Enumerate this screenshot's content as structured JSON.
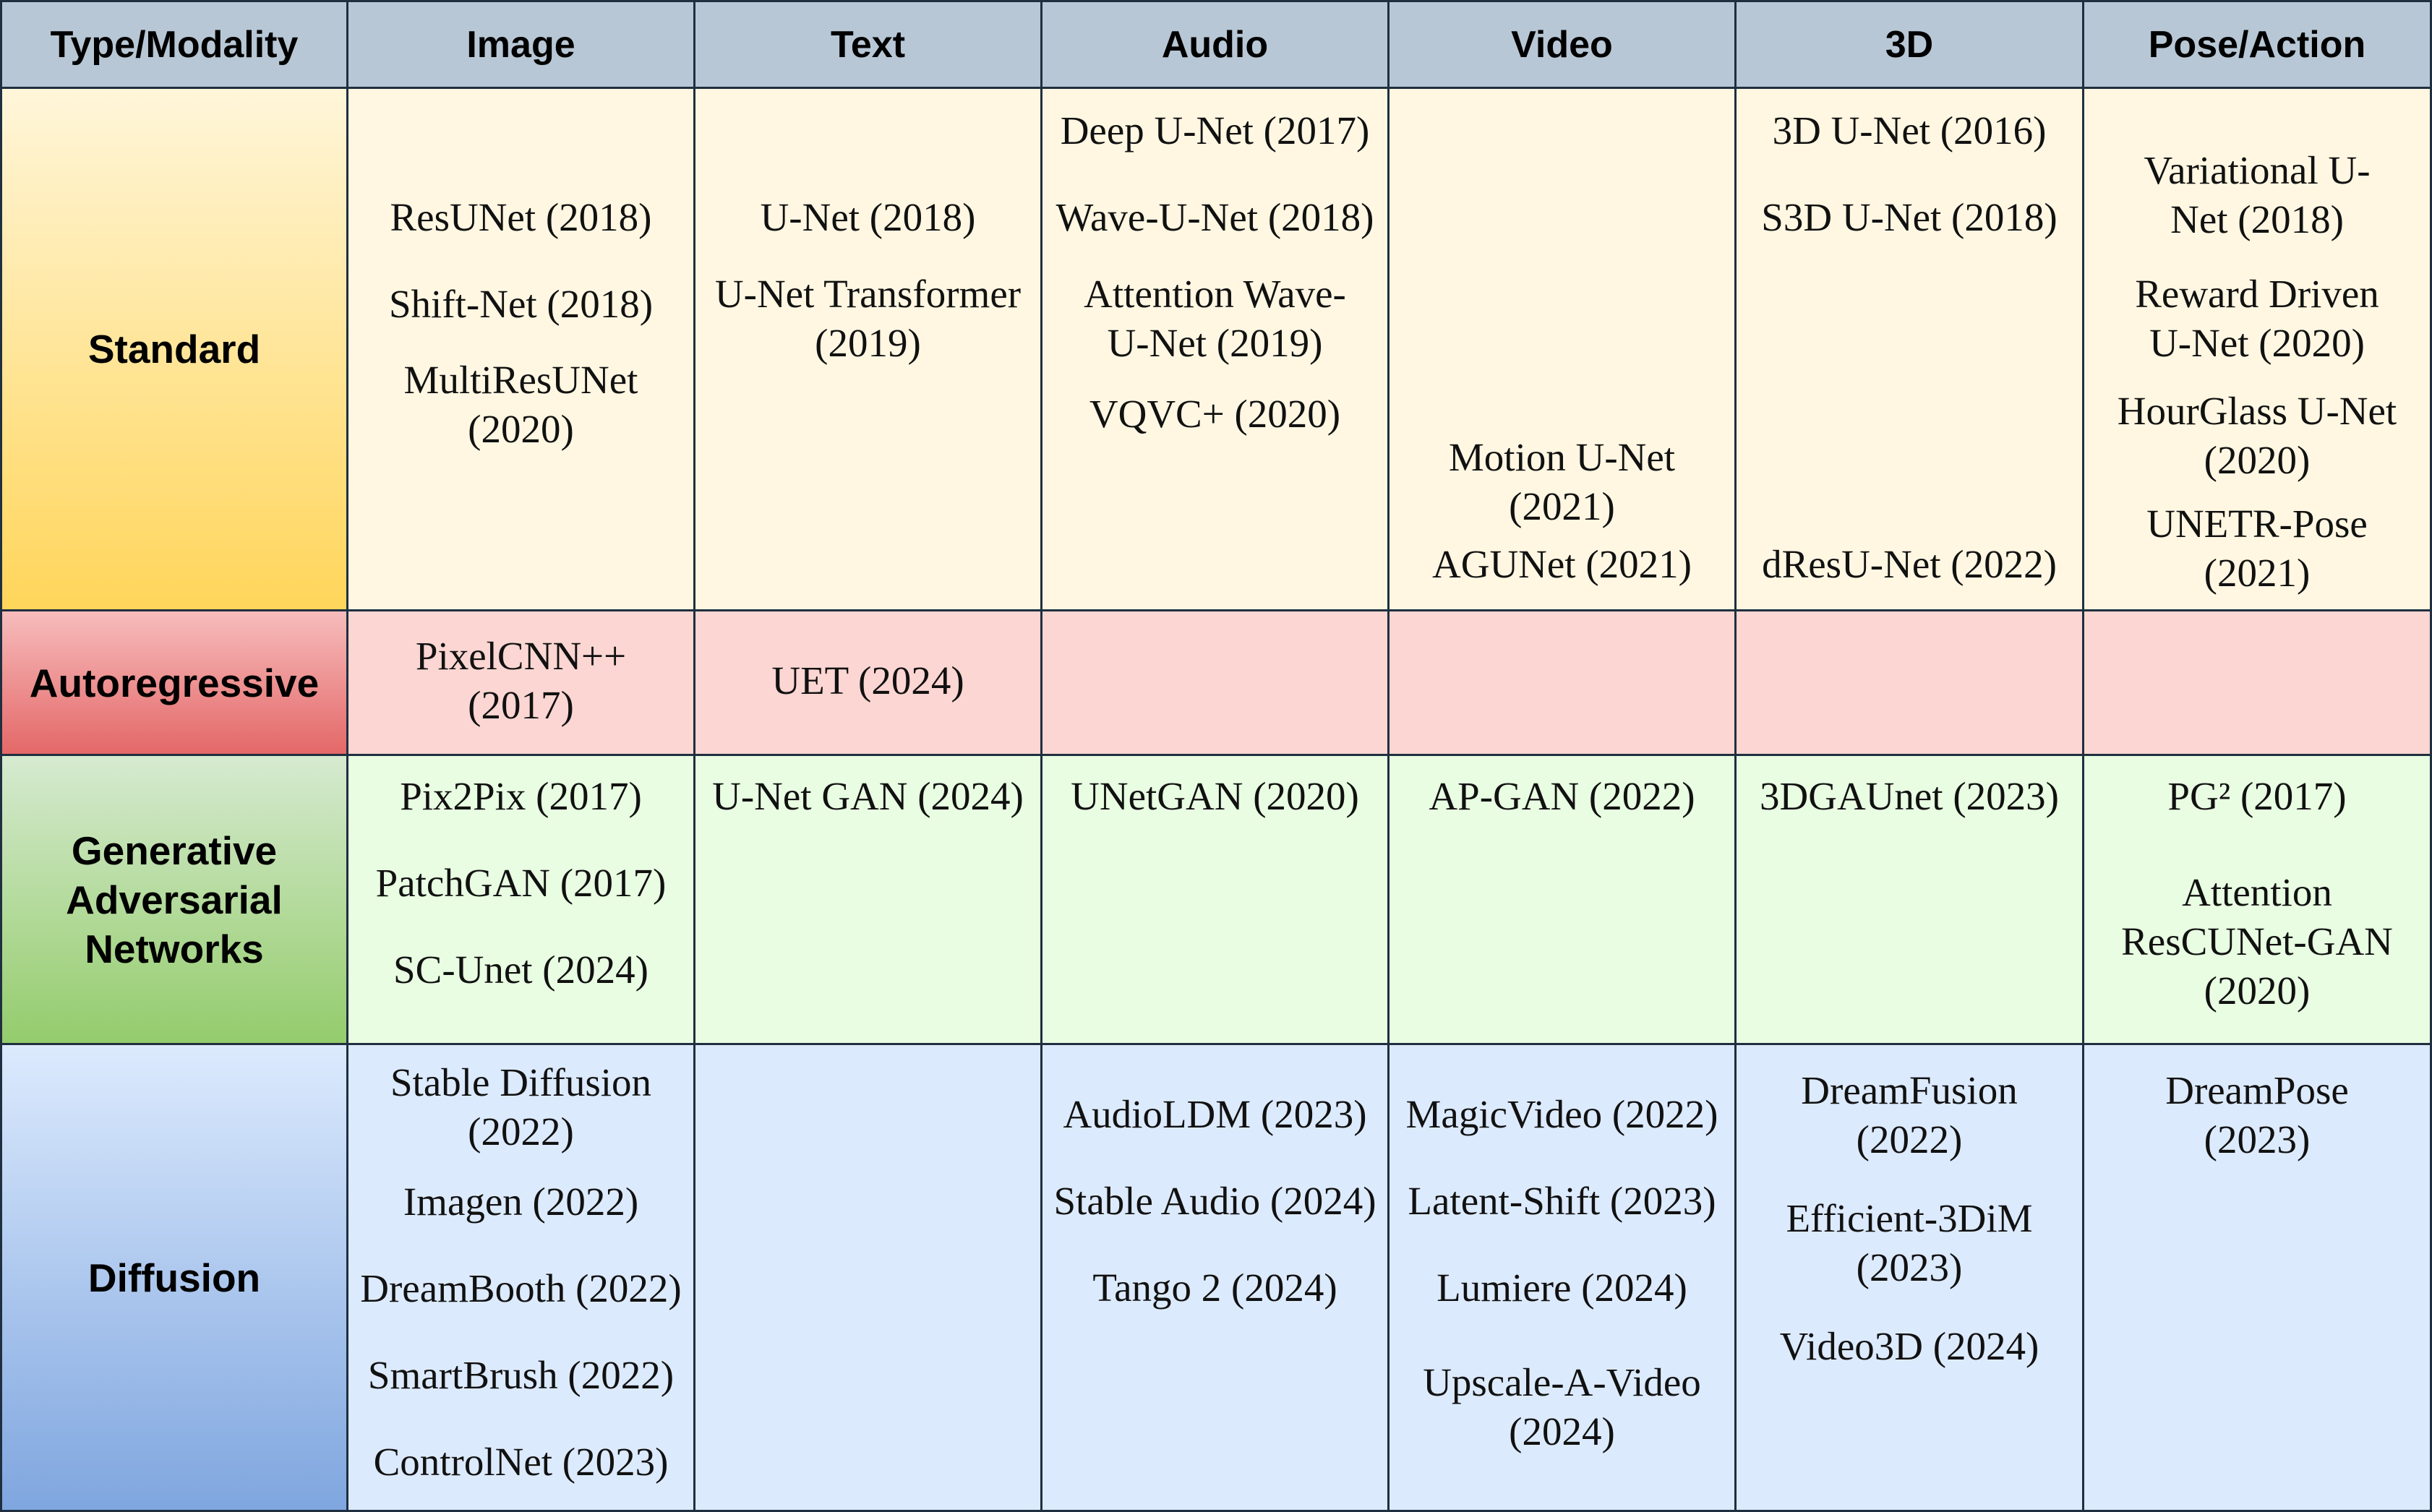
{
  "header": {
    "type_modality": "Type/Modality",
    "image": "Image",
    "text": "Text",
    "audio": "Audio",
    "video": "Video",
    "three_d": "3D",
    "pose_action": "Pose/Action"
  },
  "rows": {
    "standard": {
      "label": "Standard",
      "image": [
        "ResUNet (2018)",
        "Shift-Net (2018)",
        "MultiResUNet\n(2020)"
      ],
      "text": [
        "U-Net (2018)",
        "U-Net Transformer\n(2019)"
      ],
      "audio": [
        "Deep U-Net (2017)",
        "Wave-U-Net (2018)",
        "Attention Wave-\nU-Net (2019)",
        "VQVC+ (2020)"
      ],
      "video": [
        "Motion U-Net\n(2021)",
        "AGUNet (2021)"
      ],
      "three_d": [
        "3D U-Net (2016)",
        "S3D U-Net (2018)",
        "dResU-Net (2022)"
      ],
      "pose_action": [
        "Variational U-\nNet (2018)",
        "Reward Driven\nU-Net (2020)",
        "HourGlass U-Net\n(2020)",
        "UNETR-Pose\n(2021)"
      ]
    },
    "autoregressive": {
      "label": "Autoregressive",
      "image": [
        "PixelCNN++\n(2017)"
      ],
      "text": [
        "UET (2024)"
      ],
      "audio": [],
      "video": [],
      "three_d": [],
      "pose_action": []
    },
    "gan": {
      "label": "Generative\nAdversarial\nNetworks",
      "image": [
        "Pix2Pix (2017)",
        "PatchGAN (2017)",
        "SC-Unet (2024)"
      ],
      "text": [
        "U-Net GAN (2024)"
      ],
      "audio": [
        "UNetGAN (2020)"
      ],
      "video": [
        "AP-GAN (2022)"
      ],
      "three_d": [
        "3DGAUnet (2023)"
      ],
      "pose_action": [
        "PG² (2017)",
        "Attention\nResCUNet-GAN\n(2020)"
      ]
    },
    "diffusion": {
      "label": "Diffusion",
      "image": [
        "Stable Diffusion\n(2022)",
        "Imagen (2022)",
        "DreamBooth (2022)",
        "SmartBrush (2022)",
        "ControlNet (2023)"
      ],
      "text": [],
      "audio": [
        "AudioLDM (2023)",
        "Stable Audio (2024)",
        "Tango 2 (2024)"
      ],
      "video": [
        "MagicVideo (2022)",
        "Latent-Shift (2023)",
        "Lumiere (2024)",
        "Upscale-A-Video\n(2024)"
      ],
      "three_d": [
        "DreamFusion\n(2022)",
        "Efficient-3DiM\n(2023)",
        "Video3D (2024)"
      ],
      "pose_action": [
        "DreamPose\n(2023)"
      ]
    }
  }
}
